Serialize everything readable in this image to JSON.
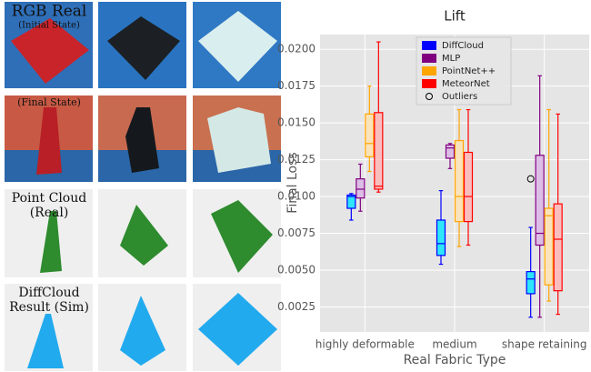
{
  "panels": {
    "row_labels": [
      [
        "RGB Real",
        "(Initial State)"
      ],
      [
        "(Final State)"
      ],
      [
        "Point Cloud",
        "(Real)"
      ],
      [
        "DiffCloud",
        "Result (Sim)"
      ]
    ]
  },
  "chart_data": {
    "type": "box",
    "title": "Lift",
    "x_label": "Real Fabric Type",
    "y_label": "Final Loss",
    "categories": [
      "highly deformable",
      "medium",
      "shape retaining"
    ],
    "ylim": [
      0.0008,
      0.021
    ],
    "yticks": [
      {
        "value": 0.0025,
        "label": "0.0025"
      },
      {
        "value": 0.005,
        "label": "0.0050"
      },
      {
        "value": 0.0075,
        "label": "0.0075"
      },
      {
        "value": 0.01,
        "label": "0.0100"
      },
      {
        "value": 0.0125,
        "label": "0.0125"
      },
      {
        "value": 0.015,
        "label": "0.0150"
      },
      {
        "value": 0.0175,
        "label": "0.0175"
      },
      {
        "value": 0.02,
        "label": "0.0200"
      }
    ],
    "grid": true,
    "legend": "upper center",
    "outlier_label": "Outliers",
    "series": [
      {
        "name": "DiffCloud",
        "color": "#0000ff",
        "fill": "#00e5ff",
        "whislo": [
          0.0084,
          0.0054,
          0.0018
        ],
        "q1": [
          0.0092,
          0.006,
          0.0034
        ],
        "med": [
          0.01,
          0.0068,
          0.0044
        ],
        "q3": [
          0.0101,
          0.0084,
          0.0049
        ],
        "whishi": [
          0.0102,
          0.0104,
          0.0079
        ],
        "outliers": [
          [],
          [],
          [
            0.0112
          ]
        ]
      },
      {
        "name": "MLP",
        "color": "#800080",
        "fill": "#d9b3e6",
        "whislo": [
          0.009,
          0.0119,
          0.0018
        ],
        "q1": [
          0.0099,
          0.0126,
          0.0067
        ],
        "med": [
          0.0105,
          0.0133,
          0.0075
        ],
        "q3": [
          0.0112,
          0.0135,
          0.0128
        ],
        "whishi": [
          0.0122,
          0.0136,
          0.0182
        ],
        "outliers": [
          [],
          [],
          []
        ]
      },
      {
        "name": "PointNet++",
        "color": "#ffa500",
        "fill": "#ffe2b0",
        "whislo": [
          0.0117,
          0.0066,
          0.0029
        ],
        "q1": [
          0.0127,
          0.0083,
          0.004
        ],
        "med": [
          0.0136,
          0.01,
          0.0087
        ],
        "q3": [
          0.0156,
          0.0138,
          0.0092
        ],
        "whishi": [
          0.0175,
          0.0159,
          0.0159
        ],
        "outliers": [
          [],
          [],
          []
        ]
      },
      {
        "name": "MeteorNet",
        "color": "#ff0000",
        "fill": "#ffb3b3",
        "whislo": [
          0.0103,
          0.0067,
          0.002
        ],
        "q1": [
          0.0105,
          0.0083,
          0.0036
        ],
        "med": [
          0.0107,
          0.01,
          0.0071
        ],
        "q3": [
          0.0157,
          0.013,
          0.0095
        ],
        "whishi": [
          0.0205,
          0.0159,
          0.0156
        ],
        "outliers": [
          [],
          [],
          []
        ]
      }
    ]
  }
}
